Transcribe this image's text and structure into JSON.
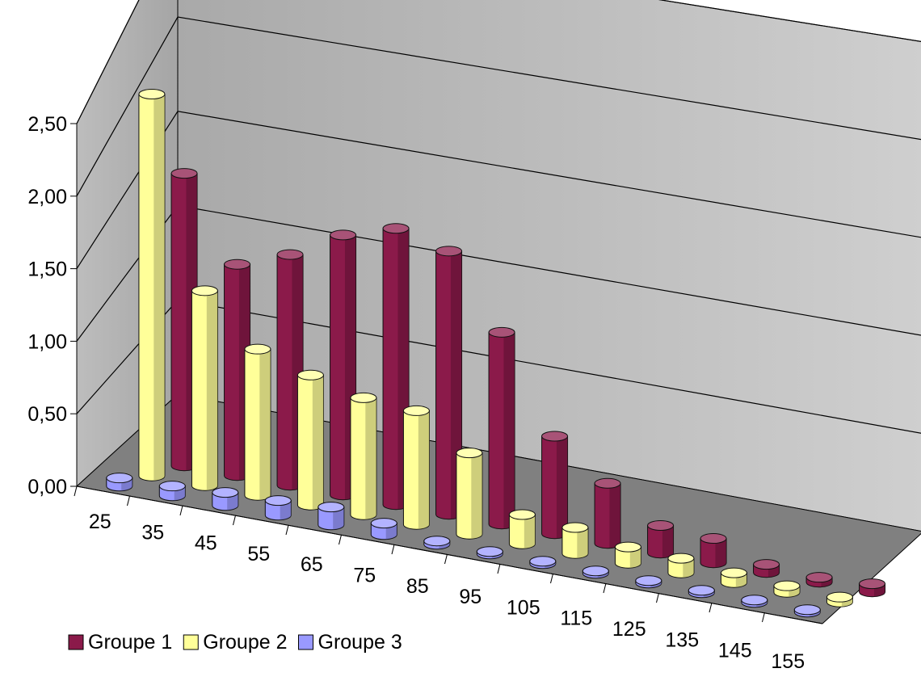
{
  "chart_data": {
    "type": "bar",
    "variant": "3d-cylinder",
    "title": "",
    "xlabel": "",
    "ylabel": "",
    "categories": [
      "25",
      "35",
      "45",
      "55",
      "65",
      "75",
      "85",
      "95",
      "105",
      "115",
      "125",
      "135",
      "145",
      "155"
    ],
    "y_ticks": [
      "0,00",
      "0,50",
      "1,00",
      "1,50",
      "2,00",
      "2,50"
    ],
    "ylim": [
      0,
      2.5
    ],
    "grid": true,
    "legend_position": "bottom-left",
    "series": [
      {
        "name": "Groupe 1",
        "color": "#8B1A4A",
        "values": [
          1.8,
          1.3,
          1.42,
          1.6,
          1.7,
          1.62,
          1.18,
          0.6,
          0.37,
          0.17,
          0.15,
          0.05,
          0.03,
          0.05
        ]
      },
      {
        "name": "Groupe 2",
        "color": "#FFFF99",
        "values": [
          2.35,
          1.2,
          0.9,
          0.8,
          0.72,
          0.7,
          0.5,
          0.18,
          0.16,
          0.1,
          0.09,
          0.06,
          0.04,
          0.03
        ]
      },
      {
        "name": "Groupe 3",
        "color": "#9999FF",
        "values": [
          0.05,
          0.06,
          0.08,
          0.09,
          0.11,
          0.07,
          0.02,
          0.01,
          0.01,
          0.01,
          0.0,
          0.0,
          0.0,
          0.0
        ]
      }
    ]
  }
}
